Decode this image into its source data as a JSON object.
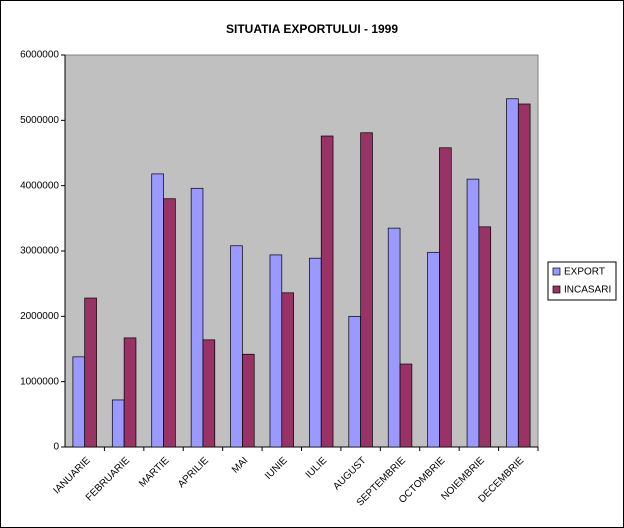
{
  "chart_data": {
    "type": "bar",
    "title": "SITUATIA EXPORTULUI - 1999",
    "categories": [
      "IANUARIE",
      "FEBRUARIE",
      "MARTIE",
      "APRILIE",
      "MAI",
      "IUNIE",
      "IULIE",
      "AUGUST",
      "SEPTEMBRIE",
      "OCTOMBRIE",
      "NOIEMBRIE",
      "DECEMBRIE"
    ],
    "series": [
      {
        "name": "EXPORT",
        "color": "#9999ff",
        "values": [
          1380000,
          720000,
          4180000,
          3960000,
          3080000,
          2940000,
          2890000,
          2000000,
          3350000,
          2980000,
          4100000,
          5330000
        ]
      },
      {
        "name": "INCASARI",
        "color": "#993366",
        "values": [
          2280000,
          1670000,
          3800000,
          1640000,
          1420000,
          2360000,
          4760000,
          4810000,
          1270000,
          4580000,
          3370000,
          5250000
        ]
      }
    ],
    "ylim": [
      0,
      6000000
    ],
    "yticks": [
      0,
      1000000,
      2000000,
      3000000,
      4000000,
      5000000,
      6000000
    ],
    "legend": "right",
    "plot_background": "#c0c0c0"
  }
}
